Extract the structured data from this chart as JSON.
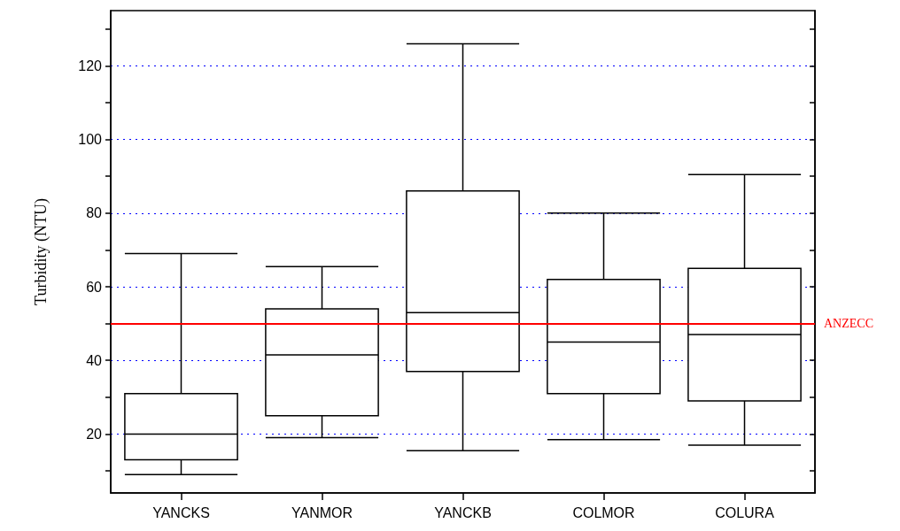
{
  "chart_data": {
    "type": "box",
    "ylabel": "Turbidity (NTU)",
    "categories": [
      "YANCKS",
      "YANMOR",
      "YANCKB",
      "COLMOR",
      "COLURA"
    ],
    "boxes": [
      {
        "low": 9,
        "q1": 13,
        "median": 20,
        "q3": 31,
        "high": 69
      },
      {
        "low": 19,
        "q1": 25,
        "median": 41.5,
        "q3": 54,
        "high": 65.5
      },
      {
        "low": 15.5,
        "q1": 37,
        "median": 53,
        "q3": 86,
        "high": 126
      },
      {
        "low": 18.5,
        "q1": 31,
        "median": 45,
        "q3": 62,
        "high": 80
      },
      {
        "low": 17,
        "q1": 29,
        "median": 47,
        "q3": 65,
        "high": 90.5
      }
    ],
    "color": "#000000",
    "ylim": [
      4,
      135
    ],
    "yticks": [
      {
        "value": 10,
        "label": null
      },
      20,
      {
        "value": 30,
        "label": null
      },
      40,
      {
        "value": 50,
        "label": null
      },
      60,
      {
        "value": 70,
        "label": null
      },
      80,
      {
        "value": 90,
        "label": null
      },
      100,
      {
        "value": 110,
        "label": null
      },
      120,
      {
        "value": 130,
        "label": null
      }
    ],
    "grid": "y",
    "ref_lines": [
      {
        "axis": "y",
        "value": 50,
        "label": "ANZECC",
        "color": "#ff0000",
        "line_style": "solid"
      }
    ]
  }
}
